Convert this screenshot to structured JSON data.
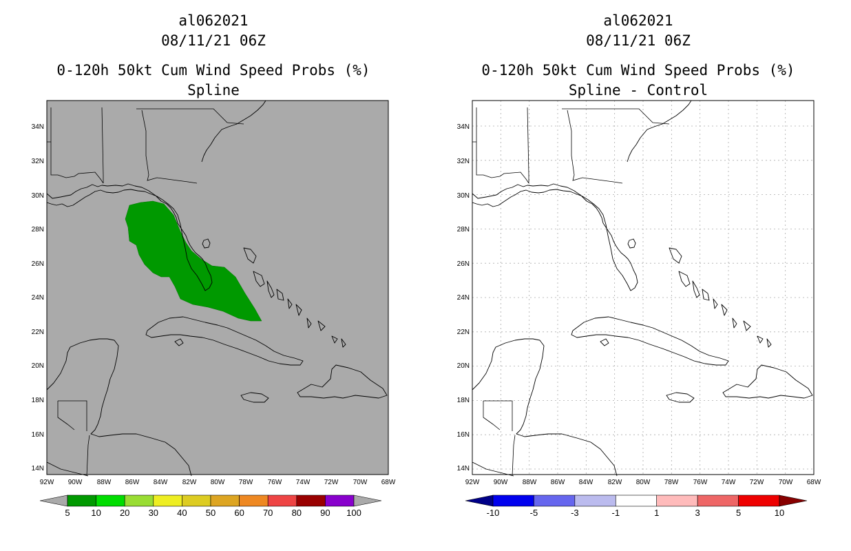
{
  "panels": [
    {
      "id": "left",
      "storm_id": "al062021",
      "datetime": "08/11/21 06Z",
      "product": "0-120h 50kt Cum Wind Speed Probs (%)",
      "subtitle": "Spline",
      "background": "#aaaaaa",
      "colorbar": {
        "colors": [
          "#009900",
          "#00dd00",
          "#99dd33",
          "#eeee22",
          "#ddcc22",
          "#dda522",
          "#ee8822",
          "#ee4444",
          "#990000",
          "#8800cc"
        ],
        "end_low": "#aaaaaa",
        "end_high": "#aaaaaa",
        "labels": [
          "5",
          "10",
          "20",
          "30",
          "40",
          "50",
          "60",
          "70",
          "80",
          "90",
          "100"
        ]
      },
      "shaded_region": {
        "value_range": "5-10",
        "color": "#009900"
      }
    },
    {
      "id": "right",
      "storm_id": "al062021",
      "datetime": "08/11/21 06Z",
      "product": "0-120h 50kt Cum Wind Speed Probs (%)",
      "subtitle": "Spline - Control",
      "background": "#ffffff",
      "colorbar": {
        "colors": [
          "#0000ee",
          "#6666ee",
          "#bbbbee",
          "#ffffff",
          "#ffbbbb",
          "#ee6666",
          "#ee0000"
        ],
        "end_low": "#000088",
        "end_high": "#880000",
        "labels": [
          "-10",
          "-5",
          "-3",
          "-1",
          "1",
          "3",
          "5",
          "10"
        ]
      }
    }
  ],
  "axes": {
    "lat_labels": [
      "34N",
      "32N",
      "30N",
      "28N",
      "26N",
      "24N",
      "22N",
      "20N",
      "18N",
      "16N",
      "14N"
    ],
    "lon_labels": [
      "92W",
      "90W",
      "88W",
      "86W",
      "84W",
      "82W",
      "80W",
      "78W",
      "76W",
      "74W",
      "72W",
      "70W",
      "68W"
    ]
  }
}
